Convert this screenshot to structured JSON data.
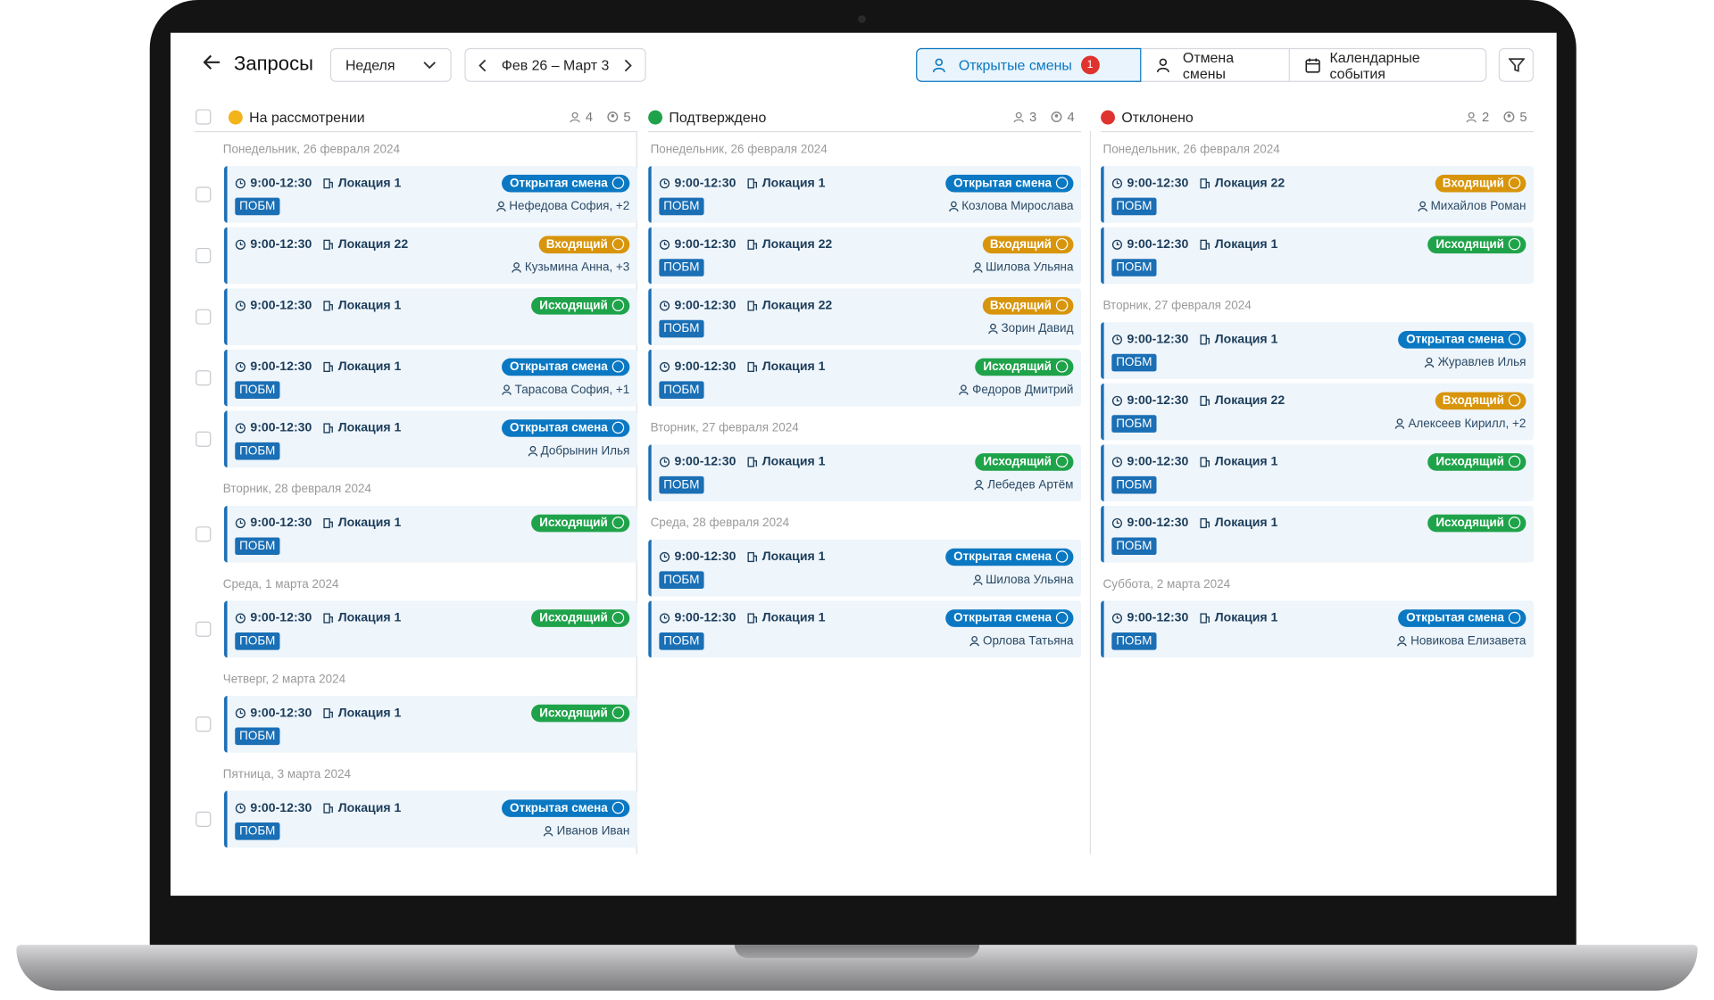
{
  "header": {
    "title": "Запросы",
    "period": "Неделя",
    "range": "Фев 26 – Март 3",
    "tabs": [
      {
        "label": "Открытые смены",
        "badge": "1"
      },
      {
        "label": "Отмена смены"
      },
      {
        "label": "Календарные события"
      }
    ]
  },
  "badge_colors": {
    "Открытая смена": "#0a78c2",
    "Входящий": "#d8950b",
    "Исходящий": "#1fa34a"
  },
  "columns": [
    {
      "title": "На рассмотрении",
      "status_color": "#f2b418",
      "counts": [
        4,
        5
      ],
      "groups": [
        {
          "date": "Понедельник, 26 февраля 2024",
          "cards": [
            {
              "time": "9:00-12:30",
              "location": "Локация 1",
              "badge": "Открытая смена",
              "tag": "ПОБМ",
              "person": "Нефедова София, +2"
            },
            {
              "time": "9:00-12:30",
              "location": "Локация 22",
              "badge": "Входящий",
              "person": "Кузьмина Анна, +3"
            },
            {
              "time": "9:00-12:30",
              "location": "Локация 1",
              "badge": "Исходящий"
            },
            {
              "time": "9:00-12:30",
              "location": "Локация 1",
              "badge": "Открытая смена",
              "tag": "ПОБМ",
              "person": "Тарасова София, +1"
            },
            {
              "time": "9:00-12:30",
              "location": "Локация 1",
              "badge": "Открытая смена",
              "tag": "ПОБМ",
              "person": "Добрынин Илья"
            }
          ]
        },
        {
          "date": "Вторник, 28 февраля 2024",
          "cards": [
            {
              "time": "9:00-12:30",
              "location": "Локация 1",
              "badge": "Исходящий",
              "tag": "ПОБМ"
            }
          ]
        },
        {
          "date": "Среда, 1 марта 2024",
          "cards": [
            {
              "time": "9:00-12:30",
              "location": "Локация 1",
              "badge": "Исходящий",
              "tag": "ПОБМ"
            }
          ]
        },
        {
          "date": "Четверг, 2 марта 2024",
          "cards": [
            {
              "time": "9:00-12:30",
              "location": "Локация 1",
              "badge": "Исходящий",
              "tag": "ПОБМ"
            }
          ]
        },
        {
          "date": "Пятница, 3 марта 2024",
          "cards": [
            {
              "time": "9:00-12:30",
              "location": "Локация 1",
              "badge": "Открытая смена",
              "tag": "ПОБМ",
              "person": "Иванов Иван"
            }
          ]
        }
      ]
    },
    {
      "title": "Подтверждено",
      "status_color": "#1fa34a",
      "counts": [
        3,
        4
      ],
      "groups": [
        {
          "date": "Понедельник, 26 февраля 2024",
          "cards": [
            {
              "time": "9:00-12:30",
              "location": "Локация 1",
              "badge": "Открытая смена",
              "tag": "ПОБМ",
              "person": "Козлова Мирослава"
            },
            {
              "time": "9:00-12:30",
              "location": "Локация 22",
              "badge": "Входящий",
              "tag": "ПОБМ",
              "person": "Шилова Ульяна"
            },
            {
              "time": "9:00-12:30",
              "location": "Локация 22",
              "badge": "Входящий",
              "tag": "ПОБМ",
              "person": "Зорин Давид"
            },
            {
              "time": "9:00-12:30",
              "location": "Локация 1",
              "badge": "Исходящий",
              "tag": "ПОБМ",
              "person": "Федоров Дмитрий"
            }
          ]
        },
        {
          "date": "Вторник, 27 февраля 2024",
          "cards": [
            {
              "time": "9:00-12:30",
              "location": "Локация 1",
              "badge": "Исходящий",
              "tag": "ПОБМ",
              "person": "Лебедев Артём"
            }
          ]
        },
        {
          "date": "Среда, 28 февраля 2024",
          "cards": [
            {
              "time": "9:00-12:30",
              "location": "Локация 1",
              "badge": "Открытая смена",
              "tag": "ПОБМ",
              "person": "Шилова Ульяна"
            },
            {
              "time": "9:00-12:30",
              "location": "Локация 1",
              "badge": "Открытая смена",
              "tag": "ПОБМ",
              "person": "Орлова Татьяна"
            }
          ]
        }
      ]
    },
    {
      "title": "Отклонено",
      "status_color": "#e0322f",
      "counts": [
        2,
        5
      ],
      "groups": [
        {
          "date": "Понедельник, 26 февраля 2024",
          "cards": [
            {
              "time": "9:00-12:30",
              "location": "Локация 22",
              "badge": "Входящий",
              "tag": "ПОБМ",
              "person": "Михайлов Роман"
            },
            {
              "time": "9:00-12:30",
              "location": "Локация 1",
              "badge": "Исходящий",
              "tag": "ПОБМ"
            }
          ]
        },
        {
          "date": "Вторник, 27 февраля 2024",
          "cards": [
            {
              "time": "9:00-12:30",
              "location": "Локация 1",
              "badge": "Открытая смена",
              "tag": "ПОБМ",
              "person": "Журавлев Илья"
            },
            {
              "time": "9:00-12:30",
              "location": "Локация 22",
              "badge": "Входящий",
              "tag": "ПОБМ",
              "person": "Алексеев Кирилл, +2"
            },
            {
              "time": "9:00-12:30",
              "location": "Локация 1",
              "badge": "Исходящий",
              "tag": "ПОБМ"
            },
            {
              "time": "9:00-12:30",
              "location": "Локация 1",
              "badge": "Исходящий",
              "tag": "ПОБМ"
            }
          ]
        },
        {
          "date": "Суббота, 2 марта 2024",
          "cards": [
            {
              "time": "9:00-12:30",
              "location": "Локация 1",
              "badge": "Открытая смена",
              "tag": "ПОБМ",
              "person": "Новикова Елизавета"
            }
          ]
        }
      ]
    }
  ]
}
